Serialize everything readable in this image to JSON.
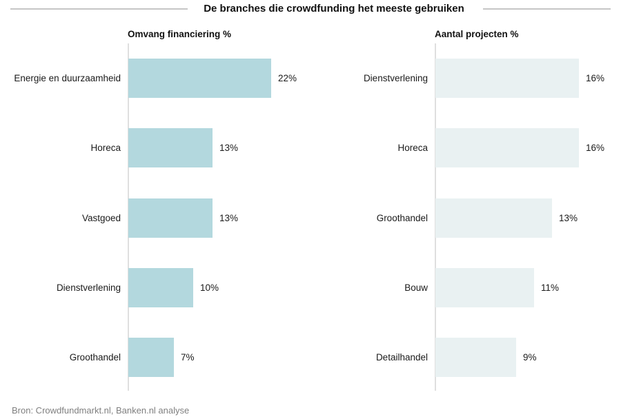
{
  "header": {
    "title": "De branches die crowdfunding het meeste gebruiken"
  },
  "source": {
    "text": "Bron: Crowdfundmarkt.nl, Banken.nl analyse"
  },
  "colors": {
    "left_bar": "#b3d8de",
    "right_bar": "#e9f1f2",
    "axis_line": "#dfdfdf",
    "divider_line": "#c6c6c6",
    "text": "#1a1a1a",
    "source_text": "#7f7f7f"
  },
  "chart_data": [
    {
      "type": "bar",
      "orientation": "horizontal",
      "title": "Omvang financiering %",
      "categories": [
        "Energie en duurzaamheid",
        "Horeca",
        "Vastgoed",
        "Dienstverlening",
        "Groothandel"
      ],
      "values": [
        22,
        13,
        13,
        10,
        7
      ],
      "value_labels": [
        "22%",
        "13%",
        "13%",
        "10%",
        "7%"
      ],
      "xlim": [
        0,
        24
      ],
      "bar_color": "#b3d8de",
      "grid": false,
      "legend": false
    },
    {
      "type": "bar",
      "orientation": "horizontal",
      "title": "Aantal projecten %",
      "categories": [
        "Dienstverlening",
        "Horeca",
        "Groothandel",
        "Bouw",
        "Detailhandel"
      ],
      "values": [
        16,
        16,
        13,
        11,
        9
      ],
      "value_labels": [
        "16%",
        "16%",
        "13%",
        "11%",
        "9%"
      ],
      "xlim": [
        0,
        18
      ],
      "bar_color": "#e9f1f2",
      "grid": false,
      "legend": false
    }
  ]
}
